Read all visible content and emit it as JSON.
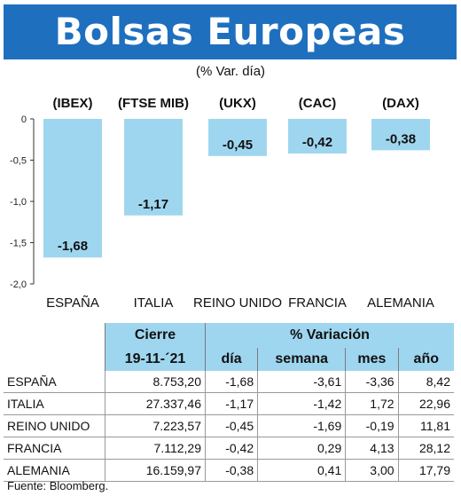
{
  "title": "Bolsas Europeas",
  "subtitle": "(% Var. día)",
  "source": "Fuente: Bloomberg.",
  "chart_data": {
    "type": "bar",
    "categories": [
      "ESPAÑA",
      "ITALIA",
      "REINO UNIDO",
      "FRANCIA",
      "ALEMANIA"
    ],
    "index_labels": [
      "(IBEX)",
      "(FTSE MIB)",
      "(UKX)",
      "(CAC)",
      "(DAX)"
    ],
    "values": [
      -1.68,
      -1.17,
      -0.45,
      -0.42,
      -0.38
    ],
    "value_labels": [
      "-1,68",
      "-1,17",
      "-0,45",
      "-0,42",
      "-0,38"
    ],
    "yticks": [
      "0",
      "-0,5",
      "-1,0",
      "-1,5",
      "-2,0"
    ],
    "ylim": [
      -2.0,
      0
    ],
    "bar_color": "#9fd6ef",
    "grid": false
  },
  "table": {
    "header_group": [
      "Cierre",
      "% Variación"
    ],
    "columns": [
      "19-11-´21",
      "día",
      "semana",
      "mes",
      "año"
    ],
    "rows": [
      {
        "name": "ESPAÑA",
        "cierre": "8.753,20",
        "dia": "-1,68",
        "semana": "-3,61",
        "mes": "-3,36",
        "anio": "8,42"
      },
      {
        "name": "ITALIA",
        "cierre": "27.337,46",
        "dia": "-1,17",
        "semana": "-1,42",
        "mes": "1,72",
        "anio": "22,96"
      },
      {
        "name": "REINO UNIDO",
        "cierre": "7.223,57",
        "dia": "-0,45",
        "semana": "-1,69",
        "mes": "-0,19",
        "anio": "11,81"
      },
      {
        "name": "FRANCIA",
        "cierre": "7.112,29",
        "dia": "-0,42",
        "semana": "0,29",
        "mes": "4,13",
        "anio": "28,12"
      },
      {
        "name": "ALEMANIA",
        "cierre": "16.159,97",
        "dia": "-0,38",
        "semana": "0,41",
        "mes": "3,00",
        "anio": "17,79"
      }
    ]
  }
}
